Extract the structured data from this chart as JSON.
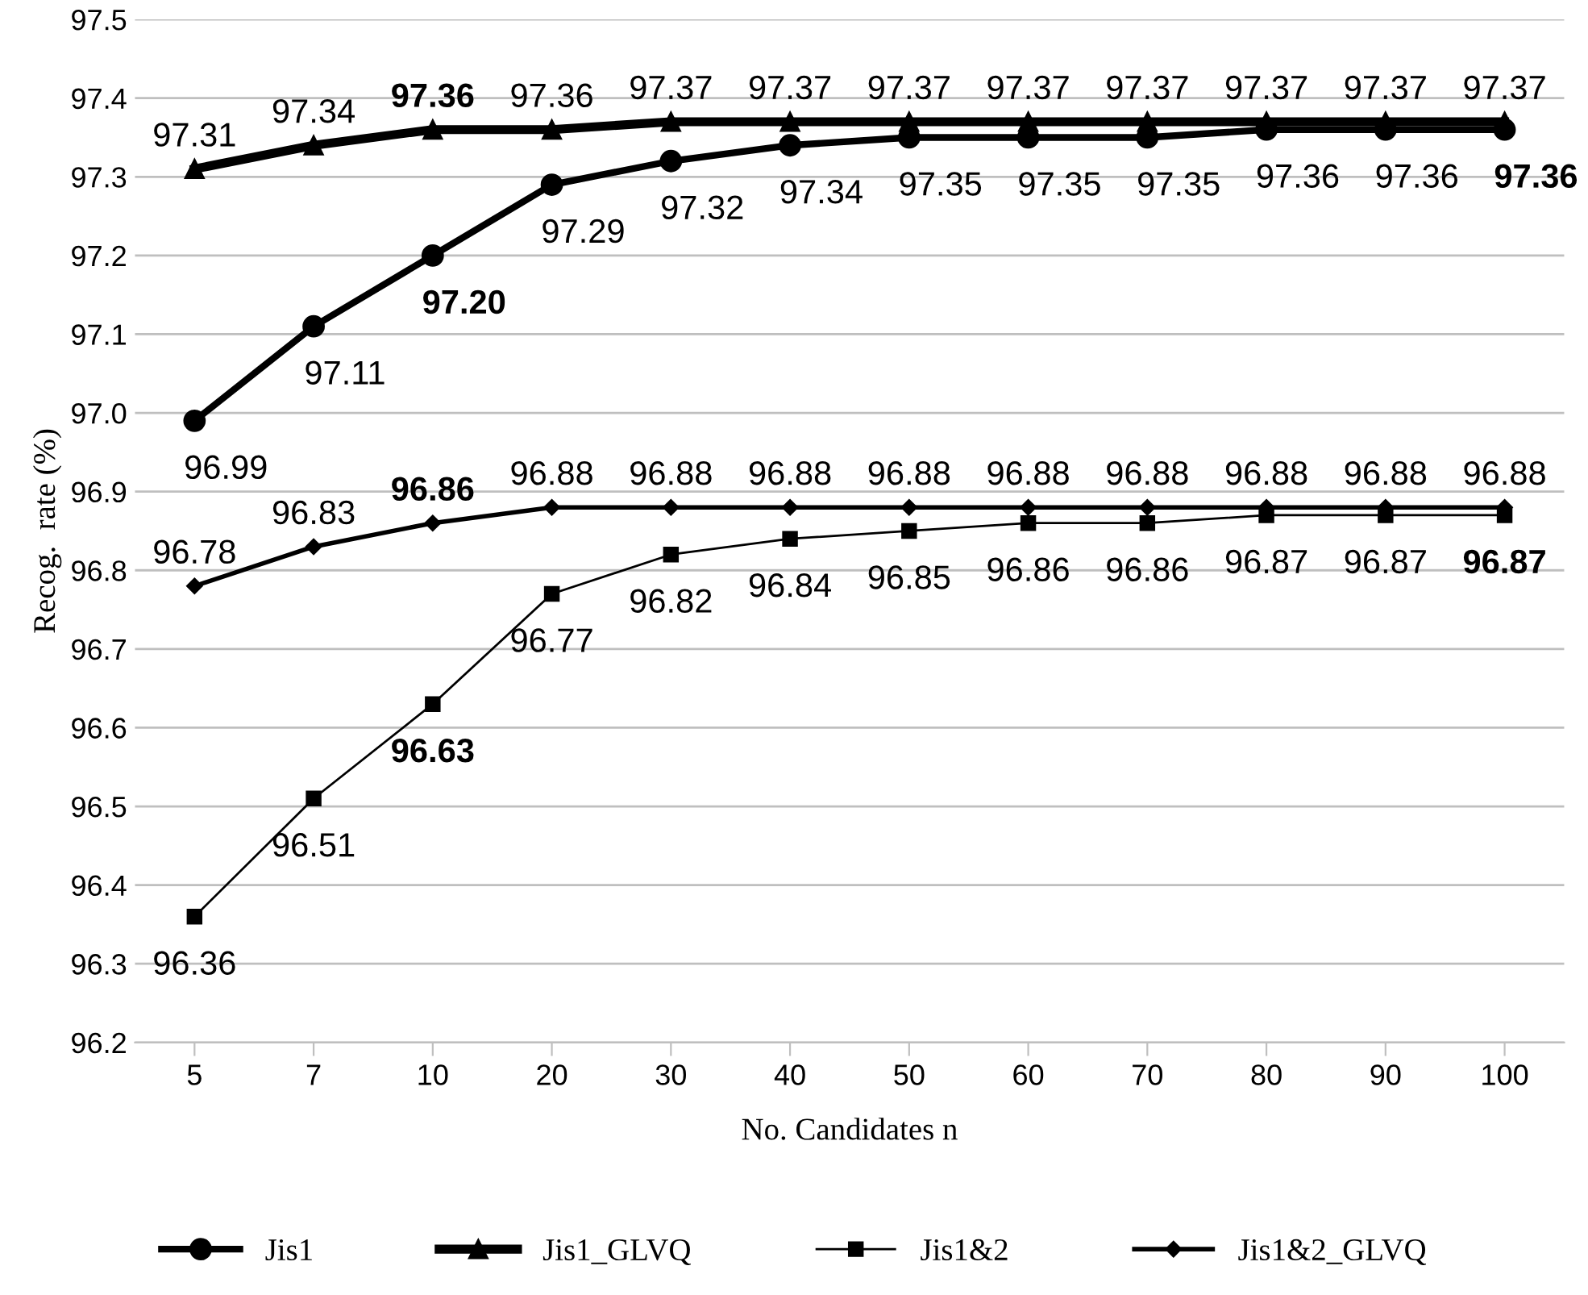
{
  "chart_data": {
    "type": "line",
    "xlabel": "No. Candidates n",
    "ylabel": "Recog.  rate (%)",
    "categories": [
      "5",
      "7",
      "10",
      "20",
      "30",
      "40",
      "50",
      "60",
      "70",
      "80",
      "90",
      "100"
    ],
    "ylim": [
      96.2,
      97.5
    ],
    "yticks": [
      96.2,
      96.3,
      96.4,
      96.5,
      96.6,
      96.7,
      96.8,
      96.9,
      {
        "value": 97.0,
        "label": "97.0"
      },
      97.1,
      97.2,
      97.3,
      97.4,
      97.5
    ],
    "grid": "y",
    "legend": "bottom",
    "series": [
      {
        "name": "Jis1",
        "color": "#000000",
        "marker": "circle",
        "values": [
          96.99,
          97.11,
          97.2,
          97.29,
          97.32,
          97.34,
          97.35,
          97.35,
          97.35,
          97.36,
          97.36,
          97.36
        ],
        "value_labels": [
          "96.99",
          "97.11",
          "97.20",
          "97.29",
          "97.32",
          "97.34",
          "97.35",
          "97.35",
          "97.35",
          "97.36",
          "97.36",
          "97.36"
        ]
      },
      {
        "name": "Jis1_GLVQ",
        "color": "#000000",
        "marker": "triangle",
        "values": [
          97.31,
          97.34,
          97.36,
          97.36,
          97.37,
          97.37,
          97.37,
          97.37,
          97.37,
          97.37,
          97.37,
          97.37
        ],
        "value_labels": [
          "97.31",
          "97.34",
          "97.36",
          "97.36",
          "97.37",
          "97.37",
          "97.37",
          "97.37",
          "97.37",
          "97.37",
          "97.37",
          "97.37"
        ]
      },
      {
        "name": "Jis1&2",
        "color": "#000000",
        "marker": "square",
        "values": [
          96.36,
          96.51,
          96.63,
          96.77,
          96.82,
          96.84,
          96.85,
          96.86,
          96.86,
          96.87,
          96.87,
          96.87
        ],
        "value_labels": [
          "96.36",
          "96.51",
          "96.63",
          "96.77",
          "96.82",
          "96.84",
          "96.85",
          "96.86",
          "96.86",
          "96.87",
          "96.87",
          "96.87"
        ]
      },
      {
        "name": "Jis1&2_GLVQ",
        "color": "#000000",
        "marker": "diamond",
        "values": [
          96.78,
          96.83,
          96.86,
          96.88,
          96.88,
          96.88,
          96.88,
          96.88,
          96.88,
          96.88,
          96.88,
          96.88
        ],
        "value_labels": [
          "96.78",
          "96.83",
          "96.86",
          "96.88",
          "96.88",
          "96.88",
          "96.88",
          "96.88",
          "96.88",
          "96.88",
          "96.88",
          "96.88"
        ]
      }
    ]
  }
}
